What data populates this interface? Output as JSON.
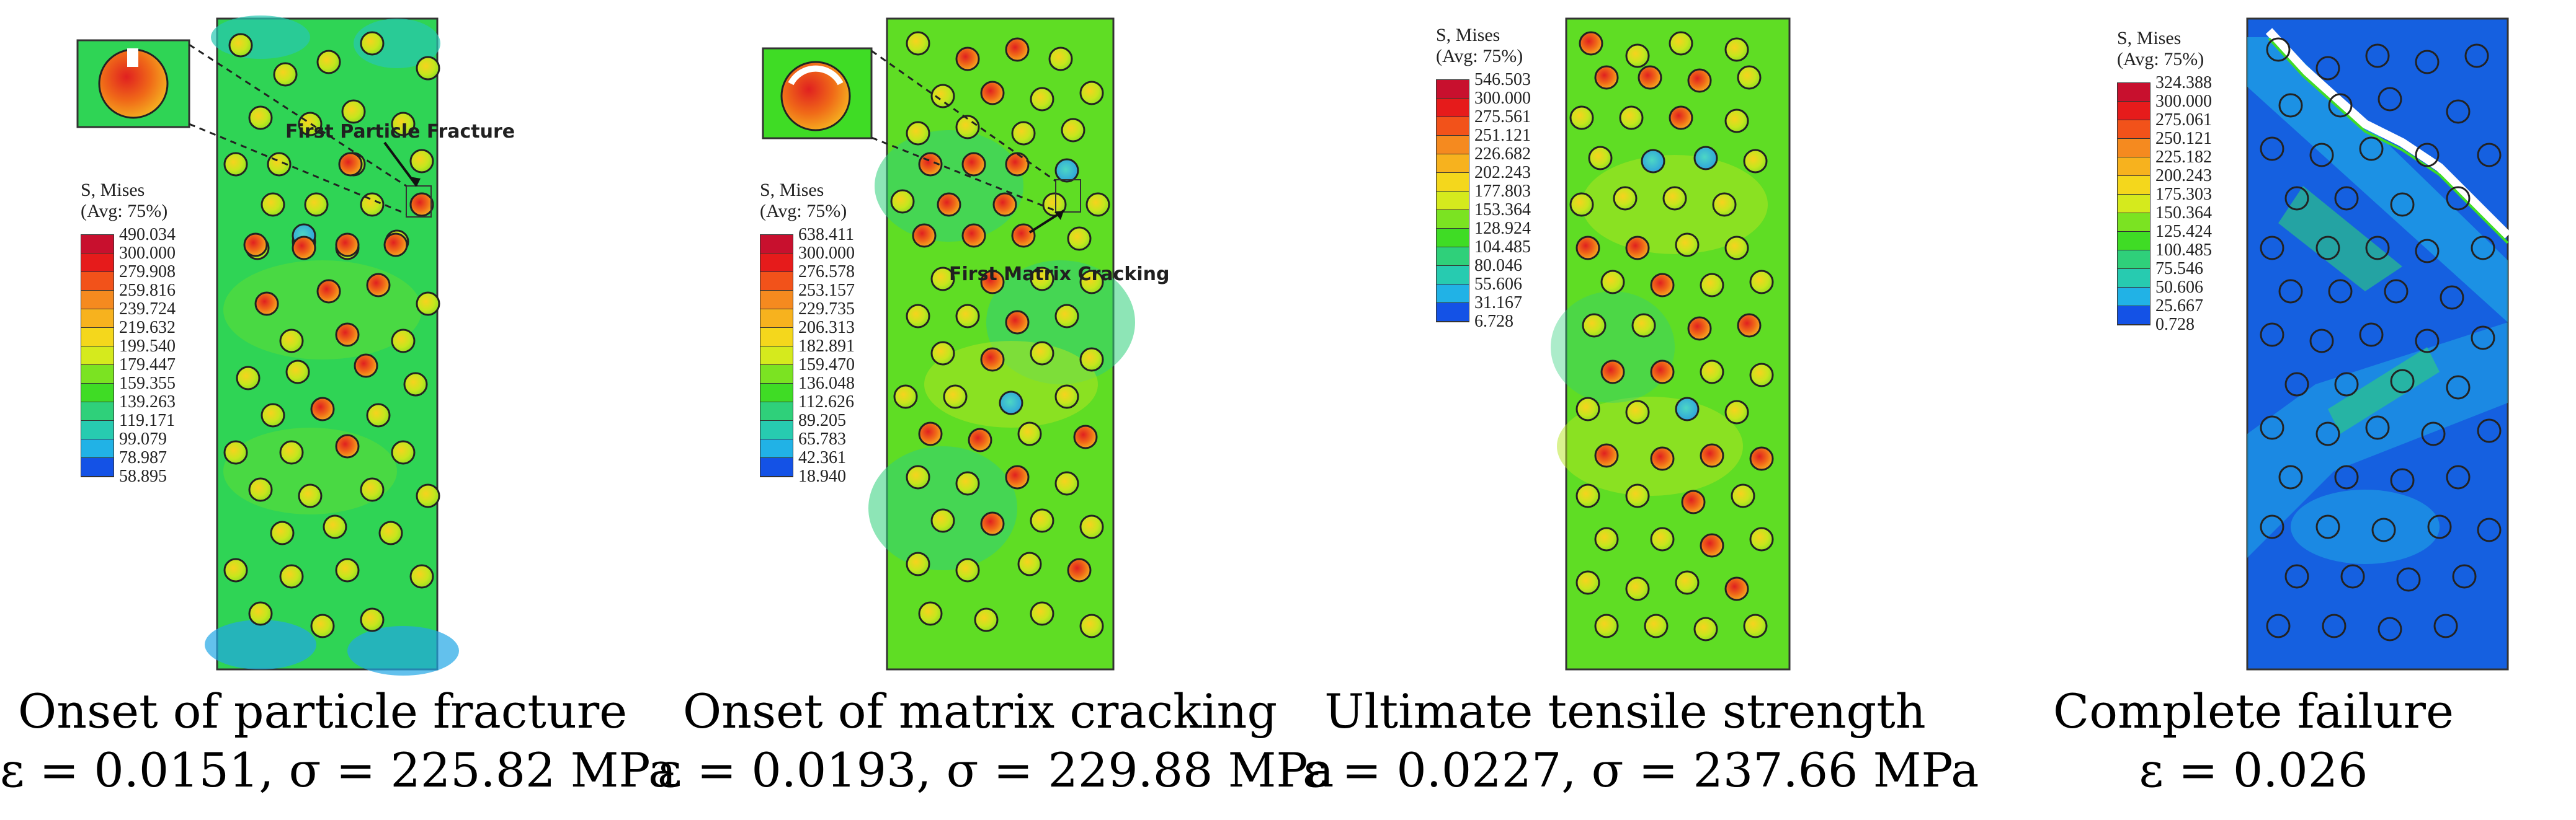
{
  "legend_colors": [
    "#c8102e",
    "#e61b1b",
    "#f2521a",
    "#f58a1f",
    "#f7b21e",
    "#f4d71c",
    "#d5ea1d",
    "#a8e81f",
    "#7be322",
    "#3fdc25",
    "#2fd07a",
    "#27cbb0",
    "#21b2e6",
    "#1c86f0",
    "#1452e6",
    "#0a18d6"
  ],
  "panels": [
    {
      "legend": {
        "title": "S, Mises",
        "avg": "(Avg: 75%)",
        "values": [
          "490.034",
          "300.000",
          "279.908",
          "259.816",
          "239.724",
          "219.632",
          "199.540",
          "179.447",
          "159.355",
          "139.263",
          "119.171",
          "99.079",
          "78.987",
          "58.895"
        ]
      },
      "annotation": "First Particle Fracture",
      "caption": {
        "title": "Onset of particle fracture",
        "values": "ε = 0.0151, σ = 225.82 MPa"
      }
    },
    {
      "legend": {
        "title": "S, Mises",
        "avg": "(Avg: 75%)",
        "values": [
          "638.411",
          "300.000",
          "276.578",
          "253.157",
          "229.735",
          "206.313",
          "182.891",
          "159.470",
          "136.048",
          "112.626",
          "89.205",
          "65.783",
          "42.361",
          "18.940"
        ]
      },
      "annotation": "First Matrix Cracking",
      "caption": {
        "title": "Onset of matrix cracking",
        "values": "ε = 0.0193, σ = 229.88 MPa"
      }
    },
    {
      "legend": {
        "title": "S, Mises",
        "avg": "(Avg: 75%)",
        "values": [
          "546.503",
          "300.000",
          "275.561",
          "251.121",
          "226.682",
          "202.243",
          "177.803",
          "153.364",
          "128.924",
          "104.485",
          "80.046",
          "55.606",
          "31.167",
          "6.728"
        ]
      },
      "annotation": "",
      "caption": {
        "title": "Ultimate tensile strength",
        "values": "ε = 0.0227, σ = 237.66 MPa"
      }
    },
    {
      "legend": {
        "title": "S, Mises",
        "avg": "(Avg: 75%)",
        "values": [
          "324.388",
          "300.000",
          "275.061",
          "250.121",
          "225.182",
          "200.243",
          "175.303",
          "150.364",
          "125.424",
          "100.485",
          "75.546",
          "50.606",
          "25.667",
          "0.728"
        ]
      },
      "annotation": "",
      "caption": {
        "title": "Complete failure",
        "values": "ε = 0.026"
      }
    }
  ]
}
